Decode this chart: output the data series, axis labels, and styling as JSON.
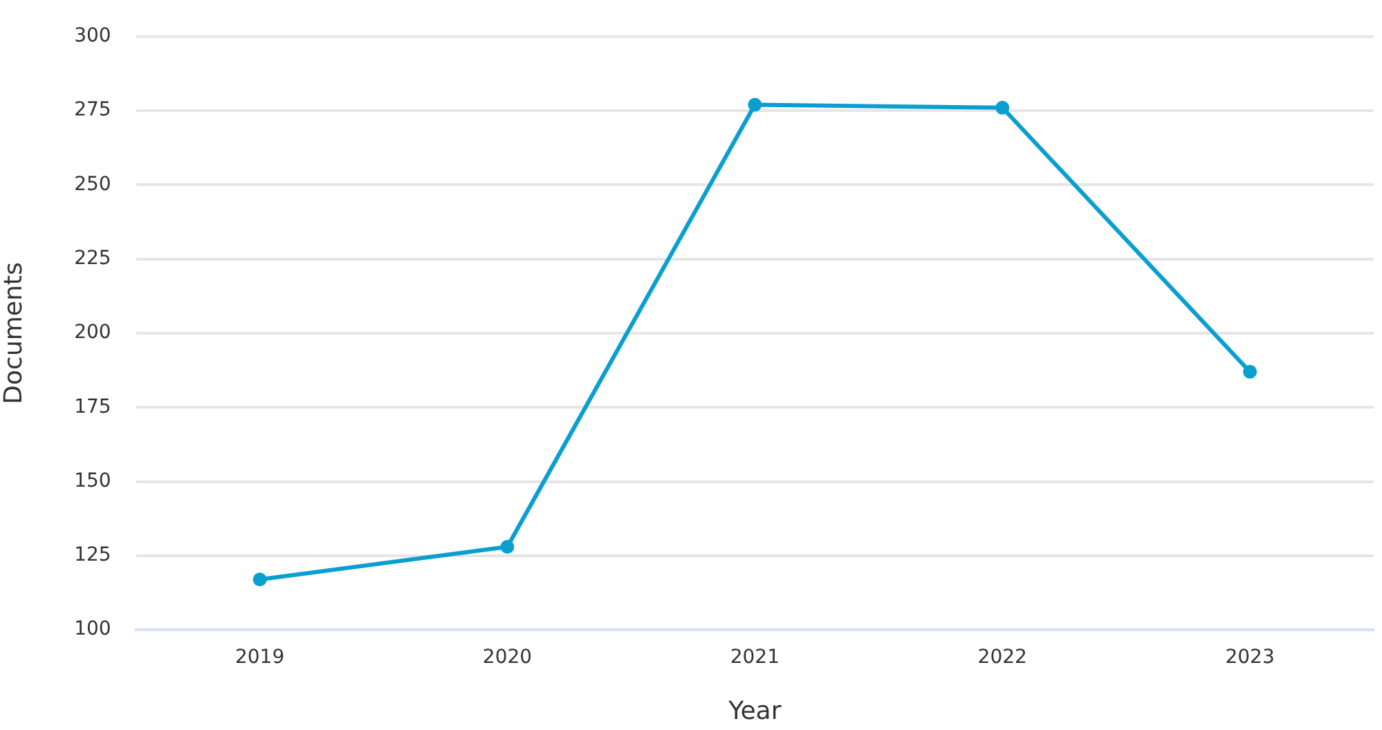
{
  "chart_data": {
    "type": "line",
    "xlabel": "Year",
    "ylabel": "Documents",
    "categories": [
      "2019",
      "2020",
      "2021",
      "2022",
      "2023"
    ],
    "series": [
      {
        "color": "#0a9fd0",
        "values": [
          117,
          128,
          277,
          276,
          187
        ]
      }
    ],
    "ylim": [
      100,
      300
    ],
    "yticks": [
      100,
      125,
      150,
      175,
      200,
      225,
      250,
      275,
      300
    ],
    "grid": "y",
    "marker": "circle",
    "line_style": "solid"
  }
}
